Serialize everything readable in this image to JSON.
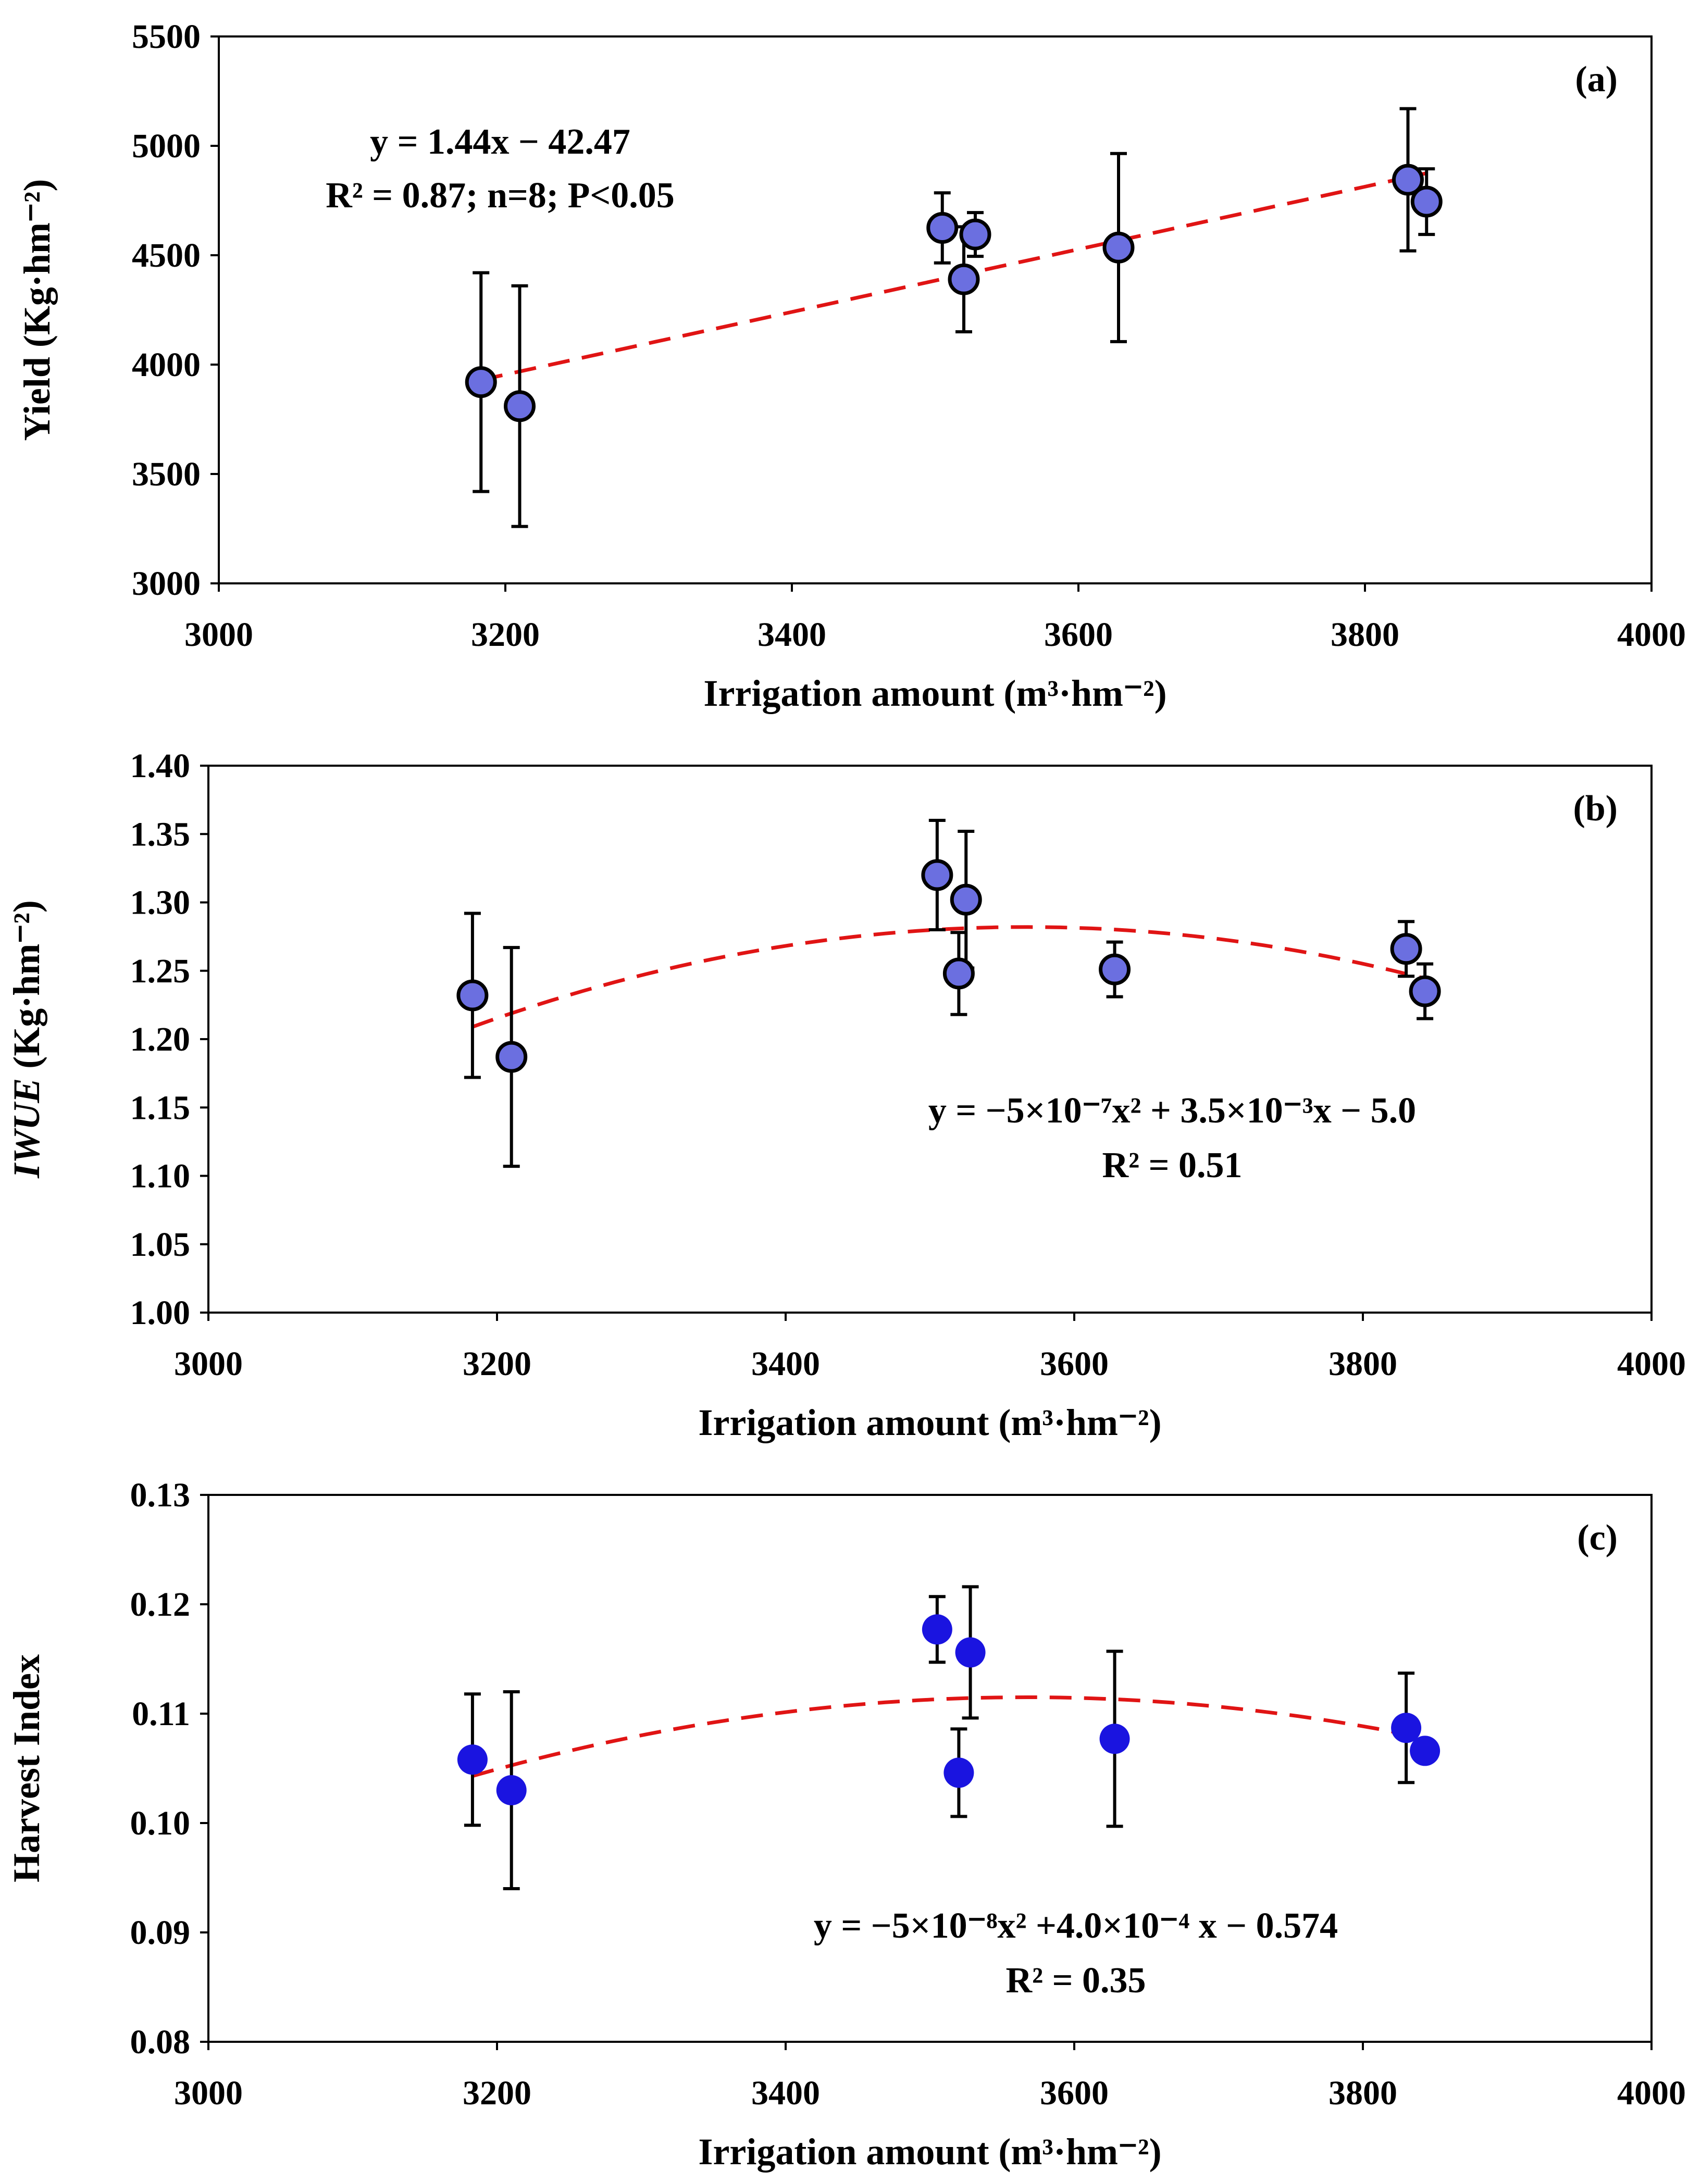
{
  "colors": {
    "marker_fill_ab": "#6b6fe0",
    "marker_fill_c": "#1a14e0",
    "trend_line": "#e01414",
    "axes": "#000000"
  },
  "chart_data": [
    {
      "panel": "a",
      "type": "scatter",
      "label": "(a)",
      "xlabel": "Irrigation amount (m³·hm⁻²)",
      "ylabel": "Yield (Kg·hm⁻²)",
      "xlim": [
        3000,
        4000
      ],
      "ylim": [
        3000,
        5500
      ],
      "xticks": [
        "3000",
        "3200",
        "3400",
        "3600",
        "3800",
        "4000"
      ],
      "yticks": [
        "3000",
        "3500",
        "4000",
        "4500",
        "5000",
        "5500"
      ],
      "marker_style": "outlined",
      "points": [
        {
          "x": 3183,
          "y": 3920,
          "err": 500
        },
        {
          "x": 3210,
          "y": 3810,
          "err": 550
        },
        {
          "x": 3505,
          "y": 4625,
          "err": 160
        },
        {
          "x": 3520,
          "y": 4390,
          "err": 240
        },
        {
          "x": 3528,
          "y": 4595,
          "err": 100
        },
        {
          "x": 3628,
          "y": 4535,
          "err": 430
        },
        {
          "x": 3830,
          "y": 4845,
          "err": 325
        },
        {
          "x": 3843,
          "y": 4745,
          "err": 150
        }
      ],
      "fit": {
        "type": "linear",
        "x_range": [
          3183,
          3843
        ],
        "y_start": 3930,
        "y_end": 4875
      },
      "equation_lines": [
        "y = 1.44x − 42.47",
        "R² = 0.87; n=8; P<0.05"
      ]
    },
    {
      "panel": "b",
      "type": "scatter",
      "label": "(b)",
      "xlabel": "Irrigation amount (m³·hm⁻²)",
      "ylabel_italic": "IWUE",
      "ylabel_rest": " (Kg·hm⁻²)",
      "xlim": [
        3000,
        4000
      ],
      "ylim": [
        1.0,
        1.4
      ],
      "xticks": [
        "3000",
        "3200",
        "3400",
        "3600",
        "3800",
        "4000"
      ],
      "yticks": [
        "1.00",
        "1.05",
        "1.10",
        "1.15",
        "1.20",
        "1.25",
        "1.30",
        "1.35",
        "1.40"
      ],
      "marker_style": "outlined",
      "points": [
        {
          "x": 3183,
          "y": 1.232,
          "err": 0.06
        },
        {
          "x": 3210,
          "y": 1.187,
          "err": 0.08
        },
        {
          "x": 3505,
          "y": 1.32,
          "err": 0.04
        },
        {
          "x": 3520,
          "y": 1.248,
          "err": 0.03
        },
        {
          "x": 3525,
          "y": 1.302,
          "err": 0.05
        },
        {
          "x": 3628,
          "y": 1.251,
          "err": 0.02
        },
        {
          "x": 3830,
          "y": 1.266,
          "err": 0.02
        },
        {
          "x": 3843,
          "y": 1.235,
          "err": 0.02
        }
      ],
      "fit": {
        "type": "quadratic",
        "x_range": [
          3183,
          3843
        ],
        "vertex_x": 3567,
        "vertex_y": 1.282,
        "y_at_start": 1.209
      },
      "equation_lines": [
        "y = −5×10⁻⁷x² + 3.5×10⁻³x − 5.0",
        "R² = 0.51"
      ]
    },
    {
      "panel": "c",
      "type": "scatter",
      "label": "(c)",
      "xlabel": "Irrigation amount (m³·hm⁻²)",
      "ylabel": "Harvest Index",
      "xlim": [
        3000,
        4000
      ],
      "ylim": [
        0.08,
        0.13
      ],
      "xticks": [
        "3000",
        "3200",
        "3400",
        "3600",
        "3800",
        "4000"
      ],
      "yticks": [
        "0.08",
        "0.09",
        "0.10",
        "0.11",
        "0.12",
        "0.13"
      ],
      "marker_style": "filled",
      "points": [
        {
          "x": 3183,
          "y": 0.1058,
          "err": 0.006
        },
        {
          "x": 3210,
          "y": 0.103,
          "err": 0.009
        },
        {
          "x": 3505,
          "y": 0.1177,
          "err": 0.003
        },
        {
          "x": 3520,
          "y": 0.1046,
          "err": 0.004
        },
        {
          "x": 3528,
          "y": 0.1156,
          "err": 0.006
        },
        {
          "x": 3628,
          "y": 0.1077,
          "err": 0.008
        },
        {
          "x": 3830,
          "y": 0.1087,
          "err": 0.005
        },
        {
          "x": 3843,
          "y": 0.1066,
          "err": 0.0
        }
      ],
      "fit": {
        "type": "quadratic",
        "x_range": [
          3183,
          3843
        ],
        "vertex_x": 3567,
        "vertex_y": 0.1115,
        "y_at_start": 0.1043
      },
      "equation_lines": [
        "y = −5×10⁻⁸x² +4.0×10⁻⁴ x − 0.574",
        "R² = 0.35"
      ]
    }
  ]
}
